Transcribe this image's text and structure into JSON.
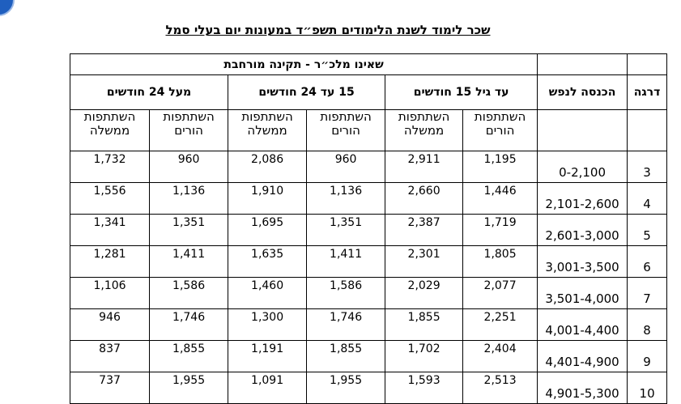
{
  "title": "שכר לימוד לשנת הלימודים תשפ״ד במעונות יום בעלי סמל",
  "table": {
    "group_header": "שאינו מלכ״ר - תקינה מורחבת",
    "grade_header": "דרגה",
    "income_header": "הכנסה לנפש",
    "age_groups": [
      "עד גיל 15 חודשים",
      "15 עד 24 חודשים",
      "מעל 24 חודשים"
    ],
    "sub_headers": [
      "השתתפות הורים",
      "השתתפות ממשלה",
      "השתתפות הורים",
      "השתתפות ממשלה",
      "השתתפות הורים",
      "השתתפות ממשלה"
    ],
    "rows": [
      [
        "3",
        "0-2,100",
        "1,195",
        "2,911",
        "960",
        "2,086",
        "960",
        "1,732"
      ],
      [
        "4",
        "2,101-2,600",
        "1,446",
        "2,660",
        "1,136",
        "1,910",
        "1,136",
        "1,556"
      ],
      [
        "5",
        "2,601-3,000",
        "1,719",
        "2,387",
        "1,351",
        "1,695",
        "1,351",
        "1,341"
      ],
      [
        "6",
        "3,001-3,500",
        "1,805",
        "2,301",
        "1,411",
        "1,635",
        "1,411",
        "1,281"
      ],
      [
        "7",
        "3,501-4,000",
        "2,077",
        "2,029",
        "1,586",
        "1,460",
        "1,586",
        "1,106"
      ],
      [
        "8",
        "4,001-4,400",
        "2,251",
        "1,855",
        "1,746",
        "1,300",
        "1,746",
        "946"
      ],
      [
        "9",
        "4,401-4,900",
        "2,404",
        "1,702",
        "1,855",
        "1,191",
        "1,855",
        "837"
      ],
      [
        "10",
        "4,901-5,300",
        "2,513",
        "1,593",
        "1,955",
        "1,091",
        "1,955",
        "737"
      ]
    ]
  }
}
